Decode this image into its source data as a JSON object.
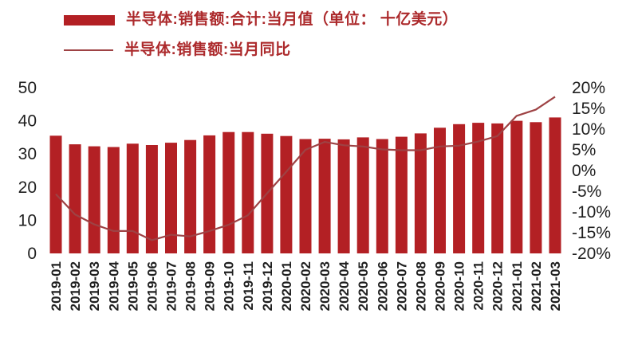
{
  "chart_data": {
    "type": "bar+line",
    "categories": [
      "2019-01",
      "2019-02",
      "2019-03",
      "2019-04",
      "2019-05",
      "2019-06",
      "2019-07",
      "2019-08",
      "2019-09",
      "2019-10",
      "2019-11",
      "2019-12",
      "2020-01",
      "2020-02",
      "2020-03",
      "2020-04",
      "2020-05",
      "2020-06",
      "2020-07",
      "2020-08",
      "2020-09",
      "2020-10",
      "2020-11",
      "2020-12",
      "2021-01",
      "2021-02",
      "2021-03"
    ],
    "series": [
      {
        "name": "半导体:销售额:合计:当月值（单位： 十亿美元）",
        "type": "bar",
        "axis": "left",
        "values": [
          35.5,
          32.9,
          32.3,
          32.1,
          33.1,
          32.7,
          33.4,
          34.2,
          35.6,
          36.6,
          36.6,
          36.1,
          35.4,
          34.5,
          34.6,
          34.4,
          35.0,
          34.5,
          35.2,
          36.2,
          37.9,
          39.0,
          39.4,
          39.2,
          40.0,
          39.6,
          41.0
        ]
      },
      {
        "name": "半导体:销售额:当月同比",
        "type": "line",
        "axis": "right",
        "values": [
          -5.7,
          -10.6,
          -13.0,
          -14.6,
          -14.6,
          -16.8,
          -15.5,
          -15.9,
          -14.6,
          -13.1,
          -10.8,
          -5.5,
          -0.3,
          5.0,
          6.9,
          6.1,
          5.8,
          5.1,
          4.9,
          4.9,
          5.8,
          6.0,
          7.0,
          8.3,
          13.2,
          14.7,
          17.8
        ]
      }
    ],
    "left_axis": {
      "min": 0,
      "max": 50,
      "ticks": [
        0,
        10,
        20,
        30,
        40,
        50
      ]
    },
    "right_axis": {
      "min": -20,
      "max": 20,
      "ticks": [
        -20,
        -15,
        -10,
        -5,
        0,
        5,
        10,
        15,
        20
      ],
      "labels": [
        "-20%",
        "-15%",
        "-10%",
        "-5%",
        "0%",
        "5%",
        "10%",
        "15%",
        "20%"
      ]
    },
    "grid": false,
    "legend_position": "top-left",
    "colors": {
      "bar": "#B32024",
      "line": "#9E4244",
      "legend_text": "#AC2A2C",
      "axis_text": "#1F1F1F"
    }
  }
}
